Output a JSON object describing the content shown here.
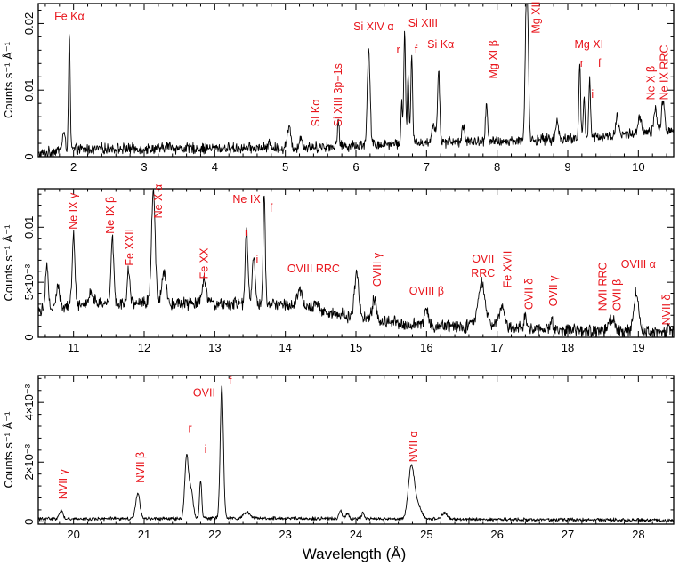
{
  "chart_data": {
    "type": "line",
    "x_axis_label": "Wavelength (Å)",
    "y_axis_label": "Counts s⁻¹ Å⁻¹",
    "annotation_color": "#e8131a",
    "panels": [
      {
        "xlim": [
          1.5,
          10.5
        ],
        "ylim": [
          0,
          0.023
        ],
        "xticks": [
          2,
          3,
          4,
          5,
          6,
          7,
          8,
          9,
          10
        ],
        "xtick_labels": [
          "2",
          "3",
          "4",
          "5",
          "6",
          "7",
          "8",
          "9",
          "10"
        ],
        "yticks": [
          0,
          0.01,
          0.02
        ],
        "ytick_labels": [
          "0",
          "0.01",
          "0.02"
        ],
        "continuum": [
          [
            1.5,
            0.0003
          ],
          [
            1.8,
            0.001
          ],
          [
            2.5,
            0.0012
          ],
          [
            5.0,
            0.0013
          ],
          [
            6.0,
            0.0017
          ],
          [
            7.0,
            0.0022
          ],
          [
            8.0,
            0.0022
          ],
          [
            9.5,
            0.003
          ],
          [
            10.5,
            0.004
          ]
        ],
        "lines": [
          [
            1.86,
            0.0025,
            0.02
          ],
          [
            1.94,
            0.017,
            0.012
          ],
          [
            3.35,
            0.0005,
            0.03
          ],
          [
            4.78,
            0.0008,
            0.02
          ],
          [
            5.05,
            0.003,
            0.025
          ],
          [
            5.22,
            0.0015,
            0.02
          ],
          [
            5.75,
            0.004,
            0.012
          ],
          [
            6.18,
            0.014,
            0.02
          ],
          [
            6.65,
            0.006,
            0.012
          ],
          [
            6.69,
            0.017,
            0.012
          ],
          [
            6.74,
            0.01,
            0.012
          ],
          [
            6.79,
            0.013,
            0.012
          ],
          [
            7.1,
            0.003,
            0.02
          ],
          [
            7.17,
            0.011,
            0.015
          ],
          [
            7.52,
            0.0025,
            0.02
          ],
          [
            7.85,
            0.006,
            0.015
          ],
          [
            8.42,
            0.025,
            0.02
          ],
          [
            8.85,
            0.0025,
            0.02
          ],
          [
            9.17,
            0.011,
            0.012
          ],
          [
            9.23,
            0.006,
            0.012
          ],
          [
            9.31,
            0.009,
            0.012
          ],
          [
            9.7,
            0.003,
            0.02
          ],
          [
            10.02,
            0.0025,
            0.02
          ],
          [
            10.24,
            0.0035,
            0.02
          ],
          [
            10.35,
            0.0045,
            0.02
          ]
        ],
        "noise": 0.0007,
        "annotations": [
          {
            "text": "Fe Kα",
            "x": 1.94,
            "y": 0.0205,
            "rotate": false
          },
          {
            "text": "SI Kα",
            "x": 5.43,
            "y": 0.0045,
            "rotate": true
          },
          {
            "text": "Si XIII 3p−1s",
            "x": 5.75,
            "y": 0.0045,
            "rotate": true
          },
          {
            "text": "Si XIV α",
            "x": 6.25,
            "y": 0.019,
            "rotate": false
          },
          {
            "text": "r",
            "x": 6.6,
            "y": 0.0155,
            "rotate": false
          },
          {
            "text": "Si XIII",
            "x": 6.95,
            "y": 0.0195,
            "rotate": false
          },
          {
            "text": "f",
            "x": 6.85,
            "y": 0.0155,
            "rotate": false
          },
          {
            "text": "Si Kα",
            "x": 7.2,
            "y": 0.0163,
            "rotate": false
          },
          {
            "text": "Mg XI β",
            "x": 7.95,
            "y": 0.0117,
            "rotate": true
          },
          {
            "text": "Mg XII α",
            "x": 8.55,
            "y": 0.0185,
            "rotate": true
          },
          {
            "text": "Mg XI",
            "x": 9.3,
            "y": 0.0163,
            "rotate": false
          },
          {
            "text": "r",
            "x": 9.2,
            "y": 0.0135,
            "rotate": false
          },
          {
            "text": "f",
            "x": 9.45,
            "y": 0.0135,
            "rotate": false
          },
          {
            "text": "i",
            "x": 9.35,
            "y": 0.0088,
            "rotate": false
          },
          {
            "text": "Ne X β",
            "x": 10.18,
            "y": 0.0085,
            "rotate": true
          },
          {
            "text": "Ne IX RRC",
            "x": 10.37,
            "y": 0.0085,
            "rotate": true
          }
        ]
      },
      {
        "xlim": [
          10.5,
          19.5
        ],
        "ylim": [
          0,
          0.0135
        ],
        "xticks": [
          11,
          12,
          13,
          14,
          15,
          16,
          17,
          18,
          19
        ],
        "xtick_labels": [
          "11",
          "12",
          "13",
          "14",
          "15",
          "16",
          "17",
          "18",
          "19"
        ],
        "yticks": [
          0,
          0.005,
          0.01
        ],
        "ytick_labels": [
          "0",
          "5×10⁻³",
          "0.01"
        ],
        "continuum": [
          [
            10.5,
            0.0025
          ],
          [
            11.0,
            0.003
          ],
          [
            12.0,
            0.0032
          ],
          [
            13.0,
            0.003
          ],
          [
            14.0,
            0.003
          ],
          [
            15.0,
            0.0018
          ],
          [
            16.0,
            0.001
          ],
          [
            17.0,
            0.001
          ],
          [
            18.0,
            0.0006
          ],
          [
            19.5,
            0.0004
          ]
        ],
        "lines": [
          [
            10.62,
            0.004,
            0.02
          ],
          [
            10.78,
            0.002,
            0.02
          ],
          [
            11.0,
            0.0062,
            0.02
          ],
          [
            11.25,
            0.001,
            0.03
          ],
          [
            11.55,
            0.006,
            0.02
          ],
          [
            11.78,
            0.003,
            0.02
          ],
          [
            12.13,
            0.0105,
            0.025
          ],
          [
            12.28,
            0.003,
            0.03
          ],
          [
            12.85,
            0.002,
            0.03
          ],
          [
            13.45,
            0.0065,
            0.02
          ],
          [
            13.55,
            0.0045,
            0.02
          ],
          [
            13.7,
            0.01,
            0.015
          ],
          [
            14.2,
            0.0015,
            0.04
          ],
          [
            14.42,
            0.0006,
            0.04
          ],
          [
            15.01,
            0.004,
            0.03
          ],
          [
            15.26,
            0.0018,
            0.03
          ],
          [
            16.0,
            0.0016,
            0.03
          ],
          [
            16.78,
            0.004,
            0.05
          ],
          [
            17.07,
            0.0018,
            0.04
          ],
          [
            17.4,
            0.0012,
            0.015
          ],
          [
            17.77,
            0.0012,
            0.015
          ],
          [
            18.62,
            0.0012,
            0.04
          ],
          [
            18.97,
            0.0036,
            0.035
          ],
          [
            19.42,
            0.0004,
            0.02
          ]
        ],
        "noise": 0.0005,
        "annotations": [
          {
            "text": "Ne IX γ",
            "x": 11.0,
            "y": 0.0098,
            "rotate": true
          },
          {
            "text": "Ne IX β",
            "x": 11.52,
            "y": 0.0094,
            "rotate": true
          },
          {
            "text": "Fe XXII",
            "x": 11.8,
            "y": 0.0065,
            "rotate": true
          },
          {
            "text": "Ne X α",
            "x": 12.2,
            "y": 0.0108,
            "rotate": true
          },
          {
            "text": "Fe XX",
            "x": 12.85,
            "y": 0.0053,
            "rotate": true
          },
          {
            "text": "Ne IX",
            "x": 13.45,
            "y": 0.0122,
            "rotate": false
          },
          {
            "text": "r",
            "x": 13.45,
            "y": 0.0092,
            "rotate": false
          },
          {
            "text": "i",
            "x": 13.6,
            "y": 0.0067,
            "rotate": false
          },
          {
            "text": "f",
            "x": 13.8,
            "y": 0.0114,
            "rotate": false
          },
          {
            "text": "OVIII RRC",
            "x": 14.4,
            "y": 0.0059,
            "rotate": false
          },
          {
            "text": "OVIII γ",
            "x": 15.3,
            "y": 0.0046,
            "rotate": true
          },
          {
            "text": "OVIII β",
            "x": 16.0,
            "y": 0.0039,
            "rotate": false
          },
          {
            "text": "OVII",
            "x": 16.8,
            "y": 0.0068,
            "rotate": false
          },
          {
            "text": "RRC",
            "x": 16.8,
            "y": 0.0055,
            "rotate": false
          },
          {
            "text": "Fe XVII",
            "x": 17.15,
            "y": 0.0045,
            "rotate": true
          },
          {
            "text": "OVII δ",
            "x": 17.45,
            "y": 0.0025,
            "rotate": true
          },
          {
            "text": "OVII γ",
            "x": 17.8,
            "y": 0.0028,
            "rotate": true
          },
          {
            "text": "NVII RRC",
            "x": 18.5,
            "y": 0.0024,
            "rotate": true
          },
          {
            "text": "OVII β",
            "x": 18.7,
            "y": 0.0024,
            "rotate": true
          },
          {
            "text": "OVIII α",
            "x": 19.0,
            "y": 0.0063,
            "rotate": false
          },
          {
            "text": "NVII δ",
            "x": 19.4,
            "y": 0.0011,
            "rotate": true
          }
        ]
      },
      {
        "xlim": [
          19.5,
          28.5
        ],
        "ylim": [
          -8e-05,
          0.0049
        ],
        "xticks": [
          20,
          21,
          22,
          23,
          24,
          25,
          26,
          27,
          28
        ],
        "xtick_labels": [
          "20",
          "21",
          "22",
          "23",
          "24",
          "25",
          "26",
          "27",
          "28"
        ],
        "yticks": [
          0,
          0.002,
          0.004
        ],
        "ytick_labels": [
          "0",
          "2×10⁻³",
          "4×10⁻³"
        ],
        "continuum": [
          [
            19.5,
            0.0001
          ],
          [
            21.0,
            0.0001
          ],
          [
            22.0,
            0.00012
          ],
          [
            24.0,
            0.0001
          ],
          [
            26.0,
            8e-05
          ],
          [
            28.5,
            5e-05
          ]
        ],
        "lines": [
          [
            19.82,
            0.0003,
            0.025
          ],
          [
            20.91,
            0.00085,
            0.03
          ],
          [
            21.6,
            0.002,
            0.025
          ],
          [
            21.66,
            0.001,
            0.03
          ],
          [
            21.8,
            0.0013,
            0.015
          ],
          [
            22.1,
            0.0045,
            0.022
          ],
          [
            22.45,
            0.0002,
            0.04
          ],
          [
            23.78,
            0.0003,
            0.02
          ],
          [
            23.88,
            0.0002,
            0.02
          ],
          [
            24.1,
            0.0002,
            0.02
          ],
          [
            24.78,
            0.0015,
            0.04
          ],
          [
            24.85,
            0.0006,
            0.06
          ],
          [
            25.25,
            0.0002,
            0.04
          ]
        ],
        "noise": 5e-05,
        "annotations": [
          {
            "text": "NVII γ",
            "x": 19.85,
            "y": 0.00075,
            "rotate": true
          },
          {
            "text": "NVII β",
            "x": 20.95,
            "y": 0.0013,
            "rotate": true
          },
          {
            "text": "r",
            "x": 21.65,
            "y": 0.003,
            "rotate": false
          },
          {
            "text": "i",
            "x": 21.87,
            "y": 0.0023,
            "rotate": false
          },
          {
            "text": "OVII",
            "x": 21.85,
            "y": 0.0042,
            "rotate": false
          },
          {
            "text": "f",
            "x": 22.22,
            "y": 0.0046,
            "rotate": false
          },
          {
            "text": "NVII α",
            "x": 24.82,
            "y": 0.002,
            "rotate": true
          }
        ]
      }
    ]
  }
}
